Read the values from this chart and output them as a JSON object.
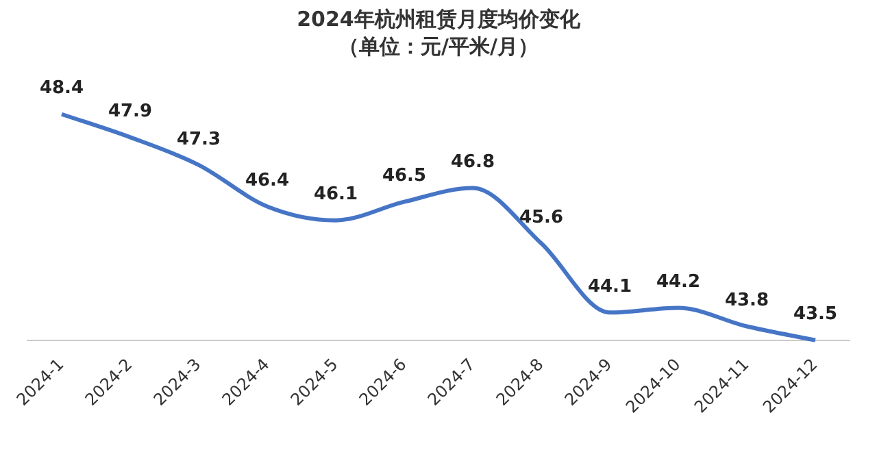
{
  "chart_data": {
    "type": "line",
    "title": "2024年杭州租赁月度均价变化",
    "subtitle": "（单位：元/平米/月）",
    "categories": [
      "2024-1",
      "2024-2",
      "2024-3",
      "2024-4",
      "2024-5",
      "2024-6",
      "2024-7",
      "2024-8",
      "2024-9",
      "2024-10",
      "2024-11",
      "2024-12"
    ],
    "series": [
      {
        "color": "#4675c6",
        "values": [
          48.4,
          47.9,
          47.3,
          46.4,
          46.1,
          46.5,
          46.8,
          45.6,
          44.1,
          44.2,
          43.8,
          43.5
        ]
      }
    ],
    "tick_labels": "x",
    "grid": false,
    "legend": false,
    "marker": "none",
    "line_style": "solid",
    "data_labels": true
  }
}
